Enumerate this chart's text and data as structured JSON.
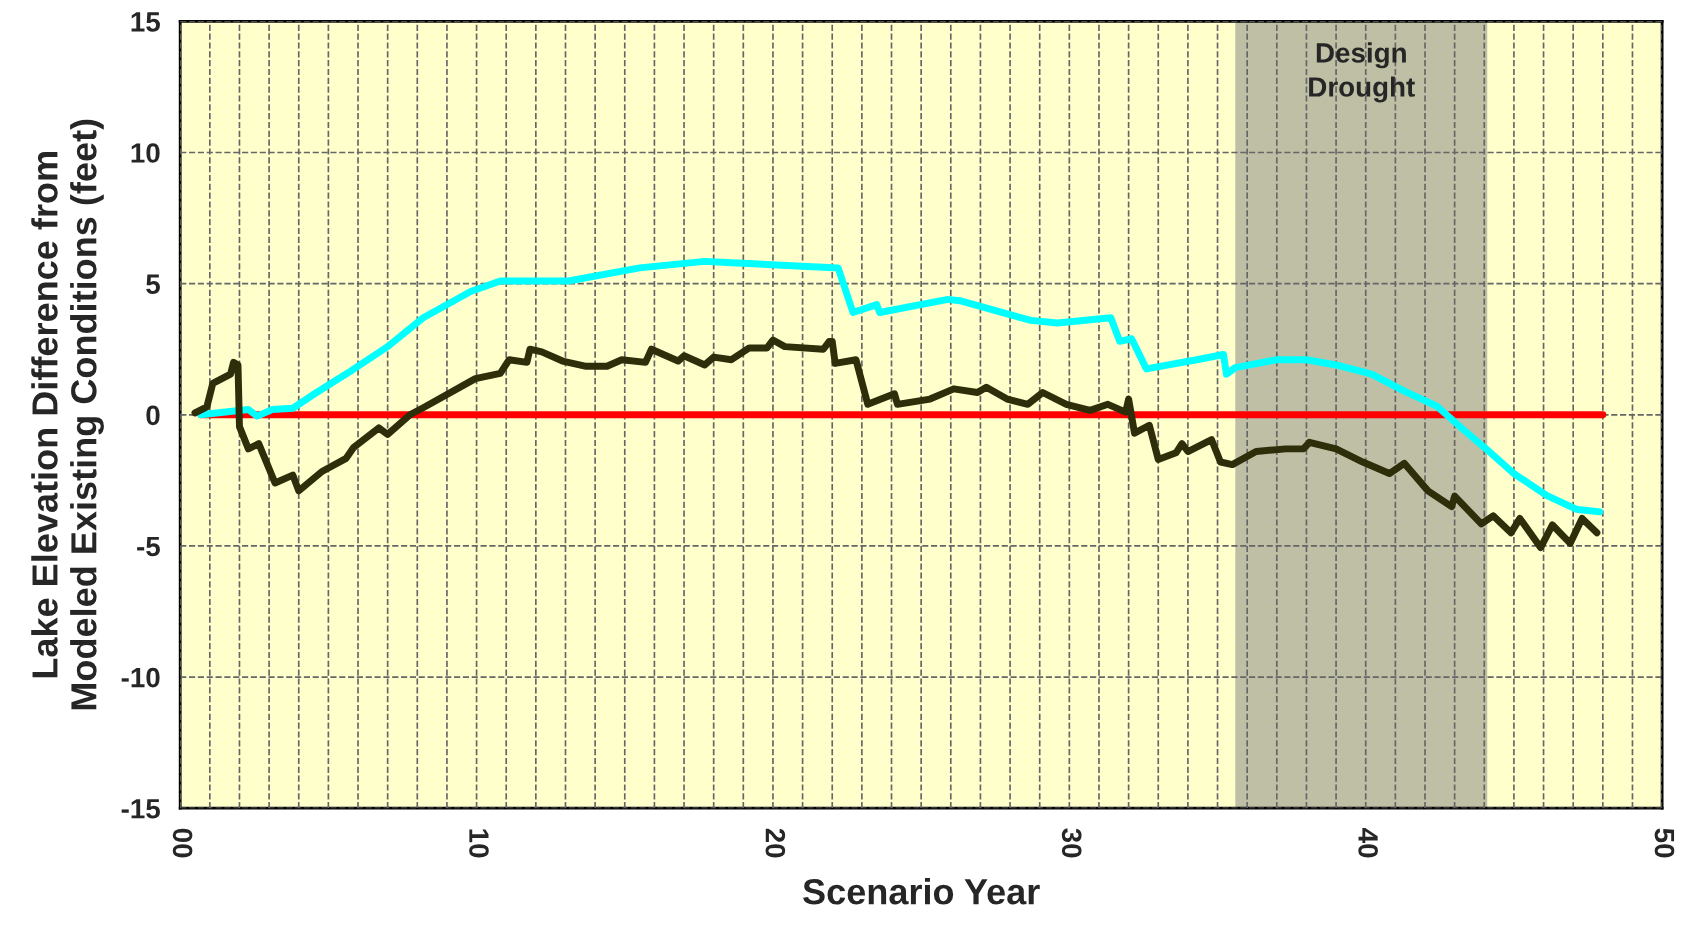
{
  "chart_data": {
    "type": "line",
    "xlabel": "Scenario Year",
    "ylabel": "Lake Elevation Difference from\nModeled Existing Conditions (feet)",
    "xlim": [
      0,
      50
    ],
    "xticks": [
      {
        "value": 0,
        "label": "00"
      },
      {
        "value": 1,
        "label": null
      },
      {
        "value": 2,
        "label": null
      },
      {
        "value": 3,
        "label": null
      },
      {
        "value": 4,
        "label": null
      },
      {
        "value": 5,
        "label": null
      },
      {
        "value": 6,
        "label": null
      },
      {
        "value": 7,
        "label": null
      },
      {
        "value": 8,
        "label": null
      },
      {
        "value": 9,
        "label": null
      },
      10,
      {
        "value": 11,
        "label": null
      },
      {
        "value": 12,
        "label": null
      },
      {
        "value": 13,
        "label": null
      },
      {
        "value": 14,
        "label": null
      },
      {
        "value": 15,
        "label": null
      },
      {
        "value": 16,
        "label": null
      },
      {
        "value": 17,
        "label": null
      },
      {
        "value": 18,
        "label": null
      },
      {
        "value": 19,
        "label": null
      },
      20,
      {
        "value": 21,
        "label": null
      },
      {
        "value": 22,
        "label": null
      },
      {
        "value": 23,
        "label": null
      },
      {
        "value": 24,
        "label": null
      },
      {
        "value": 25,
        "label": null
      },
      {
        "value": 26,
        "label": null
      },
      {
        "value": 27,
        "label": null
      },
      {
        "value": 28,
        "label": null
      },
      {
        "value": 29,
        "label": null
      },
      30,
      {
        "value": 31,
        "label": null
      },
      {
        "value": 32,
        "label": null
      },
      {
        "value": 33,
        "label": null
      },
      {
        "value": 34,
        "label": null
      },
      {
        "value": 35,
        "label": null
      },
      {
        "value": 36,
        "label": null
      },
      {
        "value": 37,
        "label": null
      },
      {
        "value": 38,
        "label": null
      },
      {
        "value": 39,
        "label": null
      },
      40,
      {
        "value": 41,
        "label": null
      },
      {
        "value": 42,
        "label": null
      },
      {
        "value": 43,
        "label": null
      },
      {
        "value": 44,
        "label": null
      },
      {
        "value": 45,
        "label": null
      },
      {
        "value": 46,
        "label": null
      },
      {
        "value": 47,
        "label": null
      },
      {
        "value": 48,
        "label": null
      },
      {
        "value": 49,
        "label": null
      },
      50
    ],
    "ylim": [
      -15,
      15
    ],
    "yticks": [
      -15,
      -10,
      -5,
      0,
      5,
      10,
      15
    ],
    "grid": true,
    "line_style": "solid",
    "series": [
      {
        "color": "#ff0000",
        "x": [
          0.7,
          48.0
        ],
        "values": [
          0,
          0
        ]
      },
      {
        "color": "#00ffff",
        "x": [
          0.7,
          2.3,
          2.6,
          3.1,
          3.8,
          4.6,
          5.8,
          7.0,
          8.2,
          9.8,
          10.8,
          13.1,
          15.5,
          17.7,
          18.6,
          22.2,
          22.7,
          23.5,
          23.6,
          25.9,
          26.3,
          28.7,
          29.6,
          31.4,
          31.7,
          32.1,
          32.6,
          34.3,
          35.2,
          35.3,
          35.6,
          37.0,
          38.0,
          39.0,
          40.2,
          41.3,
          42.4,
          43.3,
          44.1,
          45.0,
          46.1,
          47.1,
          47.9
        ],
        "values": [
          0,
          0.2,
          -0.05,
          0.2,
          0.25,
          0.85,
          1.7,
          2.6,
          3.7,
          4.7,
          5.1,
          5.1,
          5.6,
          5.85,
          5.8,
          5.6,
          3.9,
          4.2,
          3.9,
          4.4,
          4.35,
          3.6,
          3.5,
          3.7,
          2.8,
          2.9,
          1.75,
          2.1,
          2.3,
          1.55,
          1.8,
          2.1,
          2.1,
          1.9,
          1.55,
          0.9,
          0.33,
          -0.57,
          -1.34,
          -2.24,
          -3.07,
          -3.6,
          -3.7
        ]
      },
      {
        "color": "#2e2e0a",
        "x": [
          0.5,
          0.9,
          1.1,
          1.7,
          1.8,
          1.95,
          2.0,
          2.3,
          2.65,
          3.2,
          3.8,
          4.0,
          4.8,
          5.6,
          5.85,
          6.7,
          7.0,
          7.75,
          8.2,
          9.96,
          10.8,
          11.1,
          11.7,
          11.8,
          12.2,
          12.9,
          13.7,
          14.4,
          14.9,
          15.7,
          15.9,
          16.8,
          17.0,
          17.7,
          18.0,
          18.6,
          19.2,
          19.8,
          20.0,
          20.4,
          21.7,
          21.9,
          22.0,
          22.1,
          22.8,
          23.2,
          24.1,
          24.2,
          25.3,
          26.1,
          26.9,
          27.2,
          27.9,
          28.6,
          29.1,
          29.9,
          30.7,
          31.3,
          31.9,
          32.0,
          32.2,
          32.7,
          33.0,
          33.6,
          33.8,
          34.0,
          34.8,
          35.1,
          35.5,
          36.3,
          37.3,
          37.9,
          38.1,
          39.0,
          39.9,
          40.8,
          41.3,
          42.1,
          42.9,
          43.0,
          43.9,
          44.3,
          44.9,
          45.2,
          45.9,
          46.3,
          46.9,
          47.3,
          47.8
        ],
        "values": [
          0.07,
          0.3,
          1.2,
          1.55,
          2.0,
          1.9,
          -0.45,
          -1.3,
          -1.1,
          -2.6,
          -2.3,
          -2.9,
          -2.15,
          -1.66,
          -1.25,
          -0.5,
          -0.75,
          0,
          0.27,
          1.38,
          1.58,
          2.1,
          2.0,
          2.5,
          2.4,
          2.05,
          1.85,
          1.85,
          2.1,
          2.0,
          2.5,
          2.05,
          2.25,
          1.9,
          2.2,
          2.1,
          2.55,
          2.55,
          2.85,
          2.6,
          2.5,
          2.8,
          2.8,
          1.96,
          2.1,
          0.4,
          0.8,
          0.4,
          0.6,
          0.99,
          0.85,
          1.05,
          0.6,
          0.4,
          0.85,
          0.4,
          0.17,
          0.4,
          0.1,
          0.6,
          -0.7,
          -0.4,
          -1.7,
          -1.45,
          -1.1,
          -1.4,
          -0.95,
          -1.8,
          -1.9,
          -1.4,
          -1.3,
          -1.3,
          -1.05,
          -1.3,
          -1.8,
          -2.24,
          -1.85,
          -2.9,
          -3.5,
          -3.1,
          -4.16,
          -3.85,
          -4.5,
          -3.95,
          -5.06,
          -4.2,
          -4.9,
          -3.95,
          -4.5
        ]
      }
    ],
    "bands": [
      {
        "axis": "x",
        "from": 35.6,
        "to": 44.1,
        "label": "Design\nDrought",
        "color": "#7f7f7f"
      }
    ]
  }
}
